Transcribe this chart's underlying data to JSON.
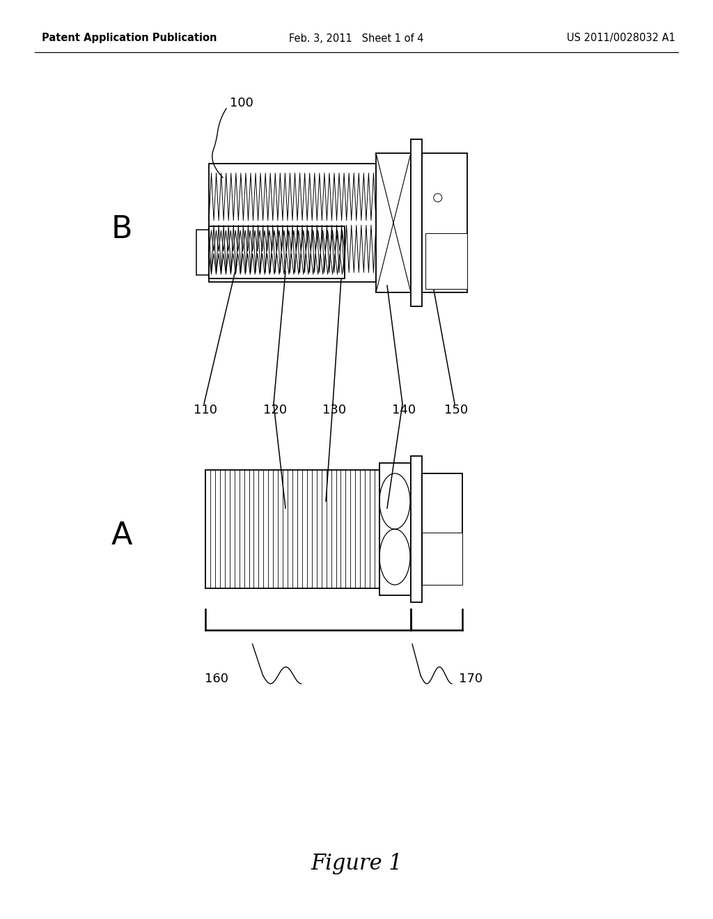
{
  "background_color": "#ffffff",
  "header_left": "Patent Application Publication",
  "header_center": "Feb. 3, 2011   Sheet 1 of 4",
  "header_right": "US 2011/0028032 A1",
  "header_fontsize": 10.5,
  "figure_label": "Figure 1",
  "figure_label_fontsize": 22,
  "ref_fontsize": 13,
  "label_B_fontsize": 32,
  "label_A_fontsize": 32
}
